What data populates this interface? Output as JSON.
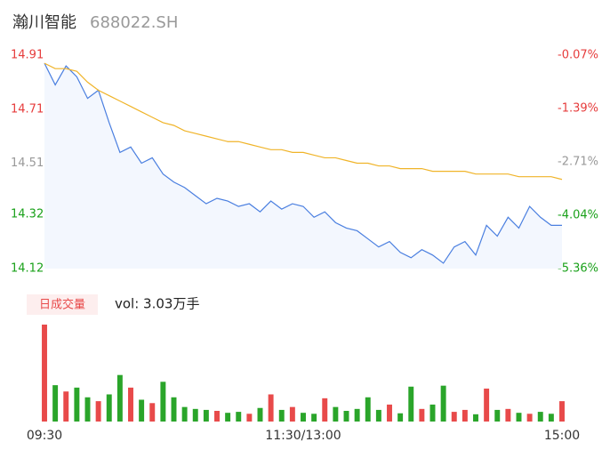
{
  "chart_data": {
    "type": "line",
    "title": "瀚川智能",
    "subtitle": "688022.SH",
    "xlim": [
      0,
      240
    ],
    "xticks": [
      {
        "value": 0,
        "label": "09:30"
      },
      {
        "value": 120,
        "label": "11:30/13:00"
      },
      {
        "value": 240,
        "label": "15:00"
      }
    ],
    "ylim": [
      14.12,
      14.91
    ],
    "yticks": [
      {
        "value": 14.91,
        "label": "14.91"
      },
      {
        "value": 14.71,
        "label": "14.71"
      },
      {
        "value": 14.51,
        "label": "14.51"
      },
      {
        "value": 14.32,
        "label": "14.32"
      },
      {
        "value": 14.12,
        "label": "14.12"
      }
    ],
    "ytick_colors": [
      "#e63c3c",
      "#e63c3c",
      "#999999",
      "#1aa11a",
      "#1aa11a"
    ],
    "y2lim": [
      -5.36,
      -0.07
    ],
    "y2ticks": [
      {
        "value": -0.07,
        "label": "-0.07%"
      },
      {
        "value": -1.39,
        "label": "-1.39%"
      },
      {
        "value": -2.71,
        "label": "-2.71%"
      },
      {
        "value": -4.04,
        "label": "-4.04%"
      },
      {
        "value": -5.36,
        "label": "-5.36%"
      }
    ],
    "x": [
      0,
      5,
      10,
      15,
      20,
      25,
      30,
      35,
      40,
      45,
      50,
      55,
      60,
      65,
      70,
      75,
      80,
      85,
      90,
      95,
      100,
      105,
      110,
      115,
      120,
      125,
      130,
      135,
      140,
      145,
      150,
      155,
      160,
      165,
      170,
      175,
      180,
      185,
      190,
      195,
      200,
      205,
      210,
      215,
      220,
      225,
      230,
      235,
      240
    ],
    "series": [
      {
        "name": "price",
        "color": "#4a7fe0",
        "values": [
          14.88,
          14.8,
          14.87,
          14.83,
          14.75,
          14.78,
          14.66,
          14.55,
          14.57,
          14.51,
          14.53,
          14.47,
          14.44,
          14.42,
          14.39,
          14.36,
          14.38,
          14.37,
          14.35,
          14.36,
          14.33,
          14.37,
          14.34,
          14.36,
          14.35,
          14.31,
          14.33,
          14.29,
          14.27,
          14.26,
          14.23,
          14.2,
          14.22,
          14.18,
          14.16,
          14.19,
          14.17,
          14.14,
          14.2,
          14.22,
          14.17,
          14.28,
          14.24,
          14.31,
          14.27,
          14.35,
          14.31,
          14.28,
          14.28
        ]
      },
      {
        "name": "average",
        "color": "#f0b429",
        "values": [
          14.88,
          14.86,
          14.86,
          14.85,
          14.81,
          14.78,
          14.76,
          14.74,
          14.72,
          14.7,
          14.68,
          14.66,
          14.65,
          14.63,
          14.62,
          14.61,
          14.6,
          14.59,
          14.59,
          14.58,
          14.57,
          14.56,
          14.56,
          14.55,
          14.55,
          14.54,
          14.53,
          14.53,
          14.52,
          14.51,
          14.51,
          14.5,
          14.5,
          14.49,
          14.49,
          14.49,
          14.48,
          14.48,
          14.48,
          14.48,
          14.47,
          14.47,
          14.47,
          14.47,
          14.46,
          14.46,
          14.46,
          14.46,
          14.45
        ]
      }
    ],
    "volume": {
      "legend": "日成交量",
      "label": "vol: 3.03万手",
      "ylim": [
        0,
        2000
      ],
      "up_color": "#e84a4a",
      "down_color": "#2aa52a",
      "values": [
        2000,
        750,
        620,
        700,
        500,
        420,
        560,
        960,
        700,
        450,
        380,
        820,
        500,
        300,
        260,
        240,
        220,
        180,
        200,
        160,
        280,
        560,
        240,
        300,
        180,
        160,
        480,
        300,
        220,
        260,
        500,
        240,
        350,
        170,
        720,
        260,
        350,
        740,
        200,
        240,
        150,
        680,
        240,
        260,
        180,
        160,
        200,
        160,
        420
      ]
    }
  }
}
